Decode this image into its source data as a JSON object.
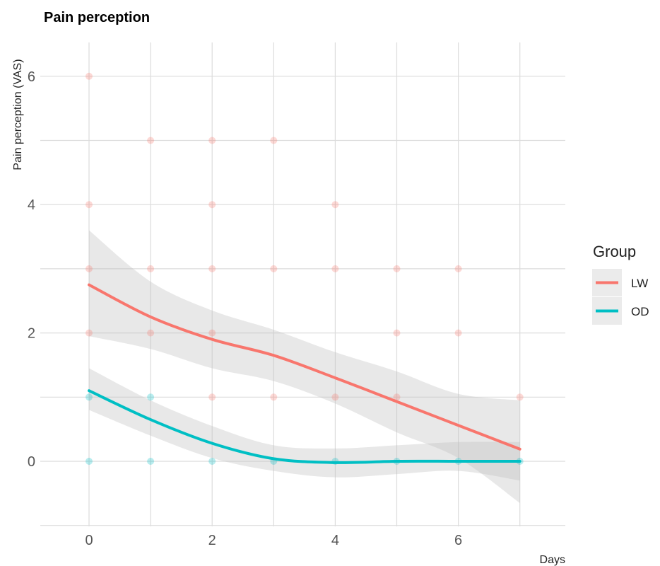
{
  "chart_data": {
    "type": "line",
    "title": "Pain perception",
    "xlabel": "Days",
    "ylabel": "Pain perception (VAS)",
    "xlim": [
      -0.8,
      7.6
    ],
    "ylim": [
      -1.0,
      6.5
    ],
    "x_ticks": [
      0,
      2,
      4,
      6
    ],
    "y_ticks": [
      0,
      2,
      4,
      6
    ],
    "x_gridlines": [
      0,
      1,
      2,
      3,
      4,
      5,
      6,
      7
    ],
    "y_gridlines": [
      -1,
      0,
      1,
      2,
      3,
      4,
      5,
      6
    ],
    "grid": true,
    "legend": {
      "title": "Group",
      "position": "right"
    },
    "series": [
      {
        "name": "LW",
        "color": "#F8766D",
        "x": [
          0,
          1,
          2,
          3,
          4,
          5,
          6,
          7
        ],
        "values": [
          2.75,
          2.25,
          1.9,
          1.65,
          1.3,
          0.93,
          0.56,
          0.19
        ],
        "ci_lower": [
          1.95,
          1.75,
          1.45,
          1.25,
          0.9,
          0.45,
          0.05,
          -0.65
        ],
        "ci_upper": [
          3.6,
          2.8,
          2.35,
          2.05,
          1.7,
          1.4,
          1.05,
          0.95
        ],
        "points": [
          [
            0,
            2
          ],
          [
            0,
            3
          ],
          [
            0,
            4
          ],
          [
            0,
            6
          ],
          [
            1,
            2
          ],
          [
            1,
            3
          ],
          [
            1,
            5
          ],
          [
            2,
            1
          ],
          [
            2,
            2
          ],
          [
            2,
            3
          ],
          [
            2,
            4
          ],
          [
            2,
            5
          ],
          [
            3,
            1
          ],
          [
            3,
            3
          ],
          [
            3,
            5
          ],
          [
            4,
            1
          ],
          [
            4,
            3
          ],
          [
            4,
            4
          ],
          [
            5,
            1
          ],
          [
            5,
            2
          ],
          [
            5,
            3
          ],
          [
            6,
            2
          ],
          [
            6,
            3
          ],
          [
            7,
            1
          ]
        ]
      },
      {
        "name": "OD",
        "color": "#00BFC4",
        "x": [
          0,
          1,
          2,
          3,
          4,
          5,
          6,
          7
        ],
        "values": [
          1.1,
          0.65,
          0.28,
          0.04,
          -0.02,
          0.0,
          0.0,
          0.0
        ],
        "ci_lower": [
          0.8,
          0.4,
          0.05,
          -0.15,
          -0.25,
          -0.2,
          -0.15,
          -0.3
        ],
        "ci_upper": [
          1.45,
          0.95,
          0.55,
          0.25,
          0.2,
          0.25,
          0.3,
          0.3
        ],
        "points": [
          [
            0,
            0
          ],
          [
            0,
            1
          ],
          [
            1,
            0
          ],
          [
            1,
            1
          ],
          [
            2,
            0
          ],
          [
            3,
            0
          ],
          [
            4,
            0
          ],
          [
            5,
            0
          ],
          [
            6,
            0
          ],
          [
            7,
            0
          ]
        ]
      }
    ],
    "colors": {
      "ci_band": "#BEBEBE",
      "grid": "#DCDCDC",
      "legend_key_bg": "#EBEBEB"
    }
  }
}
